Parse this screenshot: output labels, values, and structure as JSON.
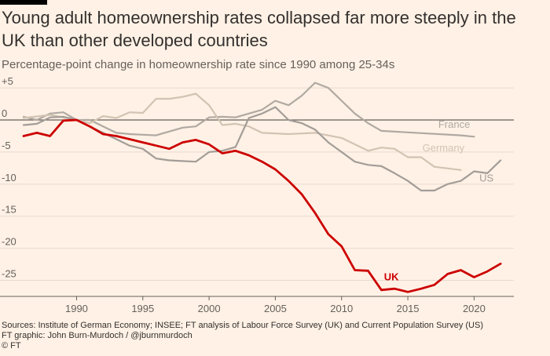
{
  "header": {
    "title": "Young adult homeownership rates collapsed far more steeply in the UK than other developed countries",
    "subtitle": "Percentage-point change in homeownership rate since 1990 among 25-34s"
  },
  "footer": {
    "sources": "Sources: Institute of German Economy; INSEE; FT analysis of Labour Force Survey (UK) and Current Population Survey (US)",
    "credit": "FT graphic: John Burn-Murdoch / @jburnmurdoch",
    "copyright": "© FT"
  },
  "chart_data": {
    "type": "line",
    "xlim": [
      1986,
      2023
    ],
    "ylim": [
      -27.5,
      5.5
    ],
    "x_ticks": [
      1990,
      1995,
      2000,
      2005,
      2010,
      2015,
      2020
    ],
    "y_ticks": [
      5,
      0,
      -5,
      -10,
      -15,
      -20,
      -25
    ],
    "y_tick_labels": [
      "+5",
      "0",
      "-5",
      "-10",
      "-15",
      "-20",
      "-25"
    ],
    "grid": true,
    "series": [
      {
        "name": "France",
        "color": "#b0a9a2",
        "points": [
          [
            1986,
            0.5
          ],
          [
            1987,
            0.0
          ],
          [
            1988,
            1.0
          ],
          [
            1989,
            1.2
          ],
          [
            1990,
            0.0
          ],
          [
            1991,
            0.0
          ],
          [
            1992,
            -1.0
          ],
          [
            1993,
            -2.0
          ],
          [
            1994,
            -2.2
          ],
          [
            1995,
            -2.3
          ],
          [
            1996,
            -2.4
          ],
          [
            1997,
            -1.8
          ],
          [
            1998,
            -1.2
          ],
          [
            1999,
            -1.0
          ],
          [
            2000,
            0.4
          ],
          [
            2001,
            0.5
          ],
          [
            2002,
            0.4
          ],
          [
            2003,
            1.0
          ],
          [
            2004,
            1.6
          ],
          [
            2005,
            3.0
          ],
          [
            2006,
            2.3
          ],
          [
            2007,
            3.8
          ],
          [
            2008,
            5.8
          ],
          [
            2009,
            5.0
          ],
          [
            2010,
            3.0
          ],
          [
            2011,
            1.0
          ],
          [
            2012,
            -0.5
          ],
          [
            2013,
            -1.7
          ],
          [
            2019,
            -2.4
          ],
          [
            2020,
            -2.6
          ]
        ]
      },
      {
        "name": "Germany",
        "color": "#d2c4b3",
        "points": [
          [
            1986,
            0.3
          ],
          [
            1988,
            0.8
          ],
          [
            1990,
            0.0
          ],
          [
            1991,
            -0.5
          ],
          [
            1992,
            0.6
          ],
          [
            1993,
            0.3
          ],
          [
            1994,
            1.2
          ],
          [
            1995,
            1.1
          ],
          [
            1996,
            3.3
          ],
          [
            1997,
            3.3
          ],
          [
            1998,
            3.6
          ],
          [
            1999,
            4.1
          ],
          [
            2000,
            2.3
          ],
          [
            2001,
            -0.8
          ],
          [
            2002,
            -0.6
          ],
          [
            2003,
            -1.0
          ],
          [
            2004,
            -2.0
          ],
          [
            2006,
            -2.2
          ],
          [
            2008,
            -2.0
          ],
          [
            2010,
            -2.8
          ],
          [
            2012,
            -4.8
          ],
          [
            2013,
            -4.3
          ],
          [
            2014,
            -4.5
          ],
          [
            2015,
            -5.8
          ],
          [
            2016,
            -5.8
          ],
          [
            2017,
            -7.3
          ],
          [
            2019,
            -7.8
          ]
        ]
      },
      {
        "name": "US",
        "color": "#a39d98",
        "points": [
          [
            1986,
            -0.8
          ],
          [
            1987,
            -0.6
          ],
          [
            1988,
            0.4
          ],
          [
            1989,
            0.5
          ],
          [
            1990,
            0.0
          ],
          [
            1991,
            -1.0
          ],
          [
            1992,
            -2.0
          ],
          [
            1993,
            -3.0
          ],
          [
            1994,
            -4.0
          ],
          [
            1995,
            -4.5
          ],
          [
            1996,
            -6.0
          ],
          [
            1997,
            -6.3
          ],
          [
            1998,
            -6.4
          ],
          [
            1999,
            -6.5
          ],
          [
            2000,
            -5.0
          ],
          [
            2001,
            -4.8
          ],
          [
            2002,
            -4.2
          ],
          [
            2003,
            0.3
          ],
          [
            2004,
            1.0
          ],
          [
            2005,
            2.0
          ],
          [
            2006,
            0.0
          ],
          [
            2007,
            -0.5
          ],
          [
            2008,
            -1.5
          ],
          [
            2009,
            -3.5
          ],
          [
            2010,
            -5.0
          ],
          [
            2011,
            -6.5
          ],
          [
            2012,
            -7.0
          ],
          [
            2013,
            -7.2
          ],
          [
            2014,
            -8.3
          ],
          [
            2015,
            -9.5
          ],
          [
            2016,
            -11.0
          ],
          [
            2017,
            -11.0
          ],
          [
            2018,
            -10.0
          ],
          [
            2019,
            -9.5
          ],
          [
            2020,
            -8.0
          ],
          [
            2021,
            -8.3
          ],
          [
            2022,
            -6.3
          ]
        ]
      },
      {
        "name": "UK",
        "color": "#cc0000",
        "points": [
          [
            1986,
            -2.5
          ],
          [
            1987,
            -2.0
          ],
          [
            1988,
            -2.5
          ],
          [
            1989,
            -0.1
          ],
          [
            1990,
            0.0
          ],
          [
            1991,
            -1.0
          ],
          [
            1992,
            -2.2
          ],
          [
            1993,
            -2.5
          ],
          [
            1994,
            -3.0
          ],
          [
            1995,
            -3.5
          ],
          [
            1996,
            -4.0
          ],
          [
            1997,
            -4.5
          ],
          [
            1998,
            -3.5
          ],
          [
            1999,
            -3.1
          ],
          [
            2000,
            -3.8
          ],
          [
            2001,
            -5.2
          ],
          [
            2002,
            -4.8
          ],
          [
            2003,
            -5.5
          ],
          [
            2004,
            -6.5
          ],
          [
            2005,
            -7.7
          ],
          [
            2006,
            -9.5
          ],
          [
            2007,
            -11.6
          ],
          [
            2008,
            -14.5
          ],
          [
            2009,
            -17.8
          ],
          [
            2010,
            -19.7
          ],
          [
            2011,
            -23.4
          ],
          [
            2012,
            -23.5
          ],
          [
            2013,
            -26.5
          ],
          [
            2014,
            -26.3
          ],
          [
            2015,
            -26.8
          ],
          [
            2016,
            -26.3
          ],
          [
            2017,
            -25.7
          ],
          [
            2018,
            -24.0
          ],
          [
            2019,
            -23.4
          ],
          [
            2020,
            -24.5
          ],
          [
            2021,
            -23.6
          ],
          [
            2022,
            -22.4
          ]
        ]
      }
    ],
    "labels": [
      {
        "text": "France",
        "series": "France",
        "x": 2017.3,
        "y": -1.2
      },
      {
        "text": "Germany",
        "series": "Germany",
        "x": 2016.1,
        "y": -4.9
      },
      {
        "text": "US",
        "series": "US",
        "x": 2020.4,
        "y": -9.6
      },
      {
        "text": "UK",
        "series": "UK",
        "x": 2013.2,
        "y": -25.0
      }
    ]
  }
}
